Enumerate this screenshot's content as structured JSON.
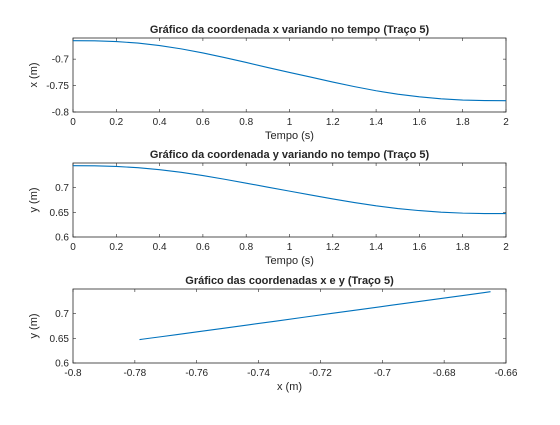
{
  "chart_data": [
    {
      "type": "line",
      "title": "Gráfico da coordenada x variando no tempo (Traço 5)",
      "xlabel": "Tempo (s)",
      "ylabel": "x (m)",
      "xlim": [
        0,
        2
      ],
      "ylim": [
        -0.8,
        -0.66
      ],
      "xticks": [
        0,
        0.2,
        0.4,
        0.6,
        0.8,
        1,
        1.2,
        1.4,
        1.6,
        1.8,
        2
      ],
      "xtick_labels": [
        "0",
        "0.2",
        "0.4",
        "0.6",
        "0.8",
        "1",
        "1.2",
        "1.4",
        "1.6",
        "1.8",
        "2"
      ],
      "yticks": [
        -0.8,
        -0.75,
        -0.7
      ],
      "ytick_labels": [
        "-0.8",
        "-0.75",
        "-0.7"
      ],
      "grid": false,
      "color": "#0072bd",
      "series": [
        {
          "x": [
            0,
            0.1,
            0.2,
            0.3,
            0.4,
            0.5,
            0.6,
            0.7,
            0.8,
            0.9,
            1.0,
            1.1,
            1.2,
            1.3,
            1.4,
            1.5,
            1.6,
            1.7,
            1.8,
            1.9,
            2.0
          ],
          "y": [
            -0.665,
            -0.6653,
            -0.6667,
            -0.6696,
            -0.6743,
            -0.6806,
            -0.6883,
            -0.697,
            -0.7063,
            -0.7159,
            -0.7251,
            -0.7342,
            -0.7434,
            -0.752,
            -0.7598,
            -0.7663,
            -0.7713,
            -0.775,
            -0.7774,
            -0.7784,
            -0.7785
          ]
        }
      ]
    },
    {
      "type": "line",
      "title": "Gráfico da coordenada y variando no tempo (Traço 5)",
      "xlabel": "Tempo (s)",
      "ylabel": "y (m)",
      "xlim": [
        0,
        2
      ],
      "ylim": [
        0.6,
        0.75
      ],
      "xticks": [
        0,
        0.2,
        0.4,
        0.6,
        0.8,
        1,
        1.2,
        1.4,
        1.6,
        1.8,
        2
      ],
      "xtick_labels": [
        "0",
        "0.2",
        "0.4",
        "0.6",
        "0.8",
        "1",
        "1.2",
        "1.4",
        "1.6",
        "1.8",
        "2"
      ],
      "yticks": [
        0.6,
        0.65,
        0.7
      ],
      "ytick_labels": [
        "0.6",
        "0.65",
        "0.7"
      ],
      "grid": false,
      "color": "#0072bd",
      "series": [
        {
          "x": [
            0,
            0.1,
            0.2,
            0.3,
            0.4,
            0.5,
            0.6,
            0.7,
            0.8,
            0.9,
            1.0,
            1.1,
            1.2,
            1.3,
            1.4,
            1.5,
            1.6,
            1.7,
            1.8,
            1.9,
            2.0
          ],
          "y": [
            0.7446,
            0.7443,
            0.743,
            0.7405,
            0.7365,
            0.7311,
            0.7245,
            0.7171,
            0.7091,
            0.701,
            0.693,
            0.685,
            0.6772,
            0.6698,
            0.6632,
            0.6577,
            0.6535,
            0.6504,
            0.6484,
            0.6476,
            0.6475
          ]
        }
      ]
    },
    {
      "type": "line",
      "title": "Gráfico das coordenadas x e y (Traço 5)",
      "xlabel": "x (m)",
      "ylabel": "y (m)",
      "xlim": [
        -0.8,
        -0.66
      ],
      "ylim": [
        0.6,
        0.75
      ],
      "xticks": [
        -0.8,
        -0.78,
        -0.76,
        -0.74,
        -0.72,
        -0.7,
        -0.68,
        -0.66
      ],
      "xtick_labels": [
        "-0.8",
        "-0.78",
        "-0.76",
        "-0.74",
        "-0.72",
        "-0.7",
        "-0.68",
        "-0.66"
      ],
      "yticks": [
        0.6,
        0.65,
        0.7
      ],
      "ytick_labels": [
        "0.6",
        "0.65",
        "0.7"
      ],
      "grid": false,
      "color": "#0072bd",
      "series": [
        {
          "x": [
            -0.7785,
            -0.7784,
            -0.7774,
            -0.775,
            -0.7713,
            -0.7663,
            -0.7598,
            -0.752,
            -0.7434,
            -0.7342,
            -0.7251,
            -0.7159,
            -0.7063,
            -0.697,
            -0.6883,
            -0.6806,
            -0.6743,
            -0.6696,
            -0.6667,
            -0.6653,
            -0.665
          ],
          "y": [
            0.6475,
            0.6476,
            0.6484,
            0.6504,
            0.6535,
            0.6577,
            0.6632,
            0.6698,
            0.6772,
            0.685,
            0.693,
            0.701,
            0.7091,
            0.7171,
            0.7245,
            0.7311,
            0.7365,
            0.7405,
            0.743,
            0.7443,
            0.7446
          ]
        }
      ]
    }
  ]
}
